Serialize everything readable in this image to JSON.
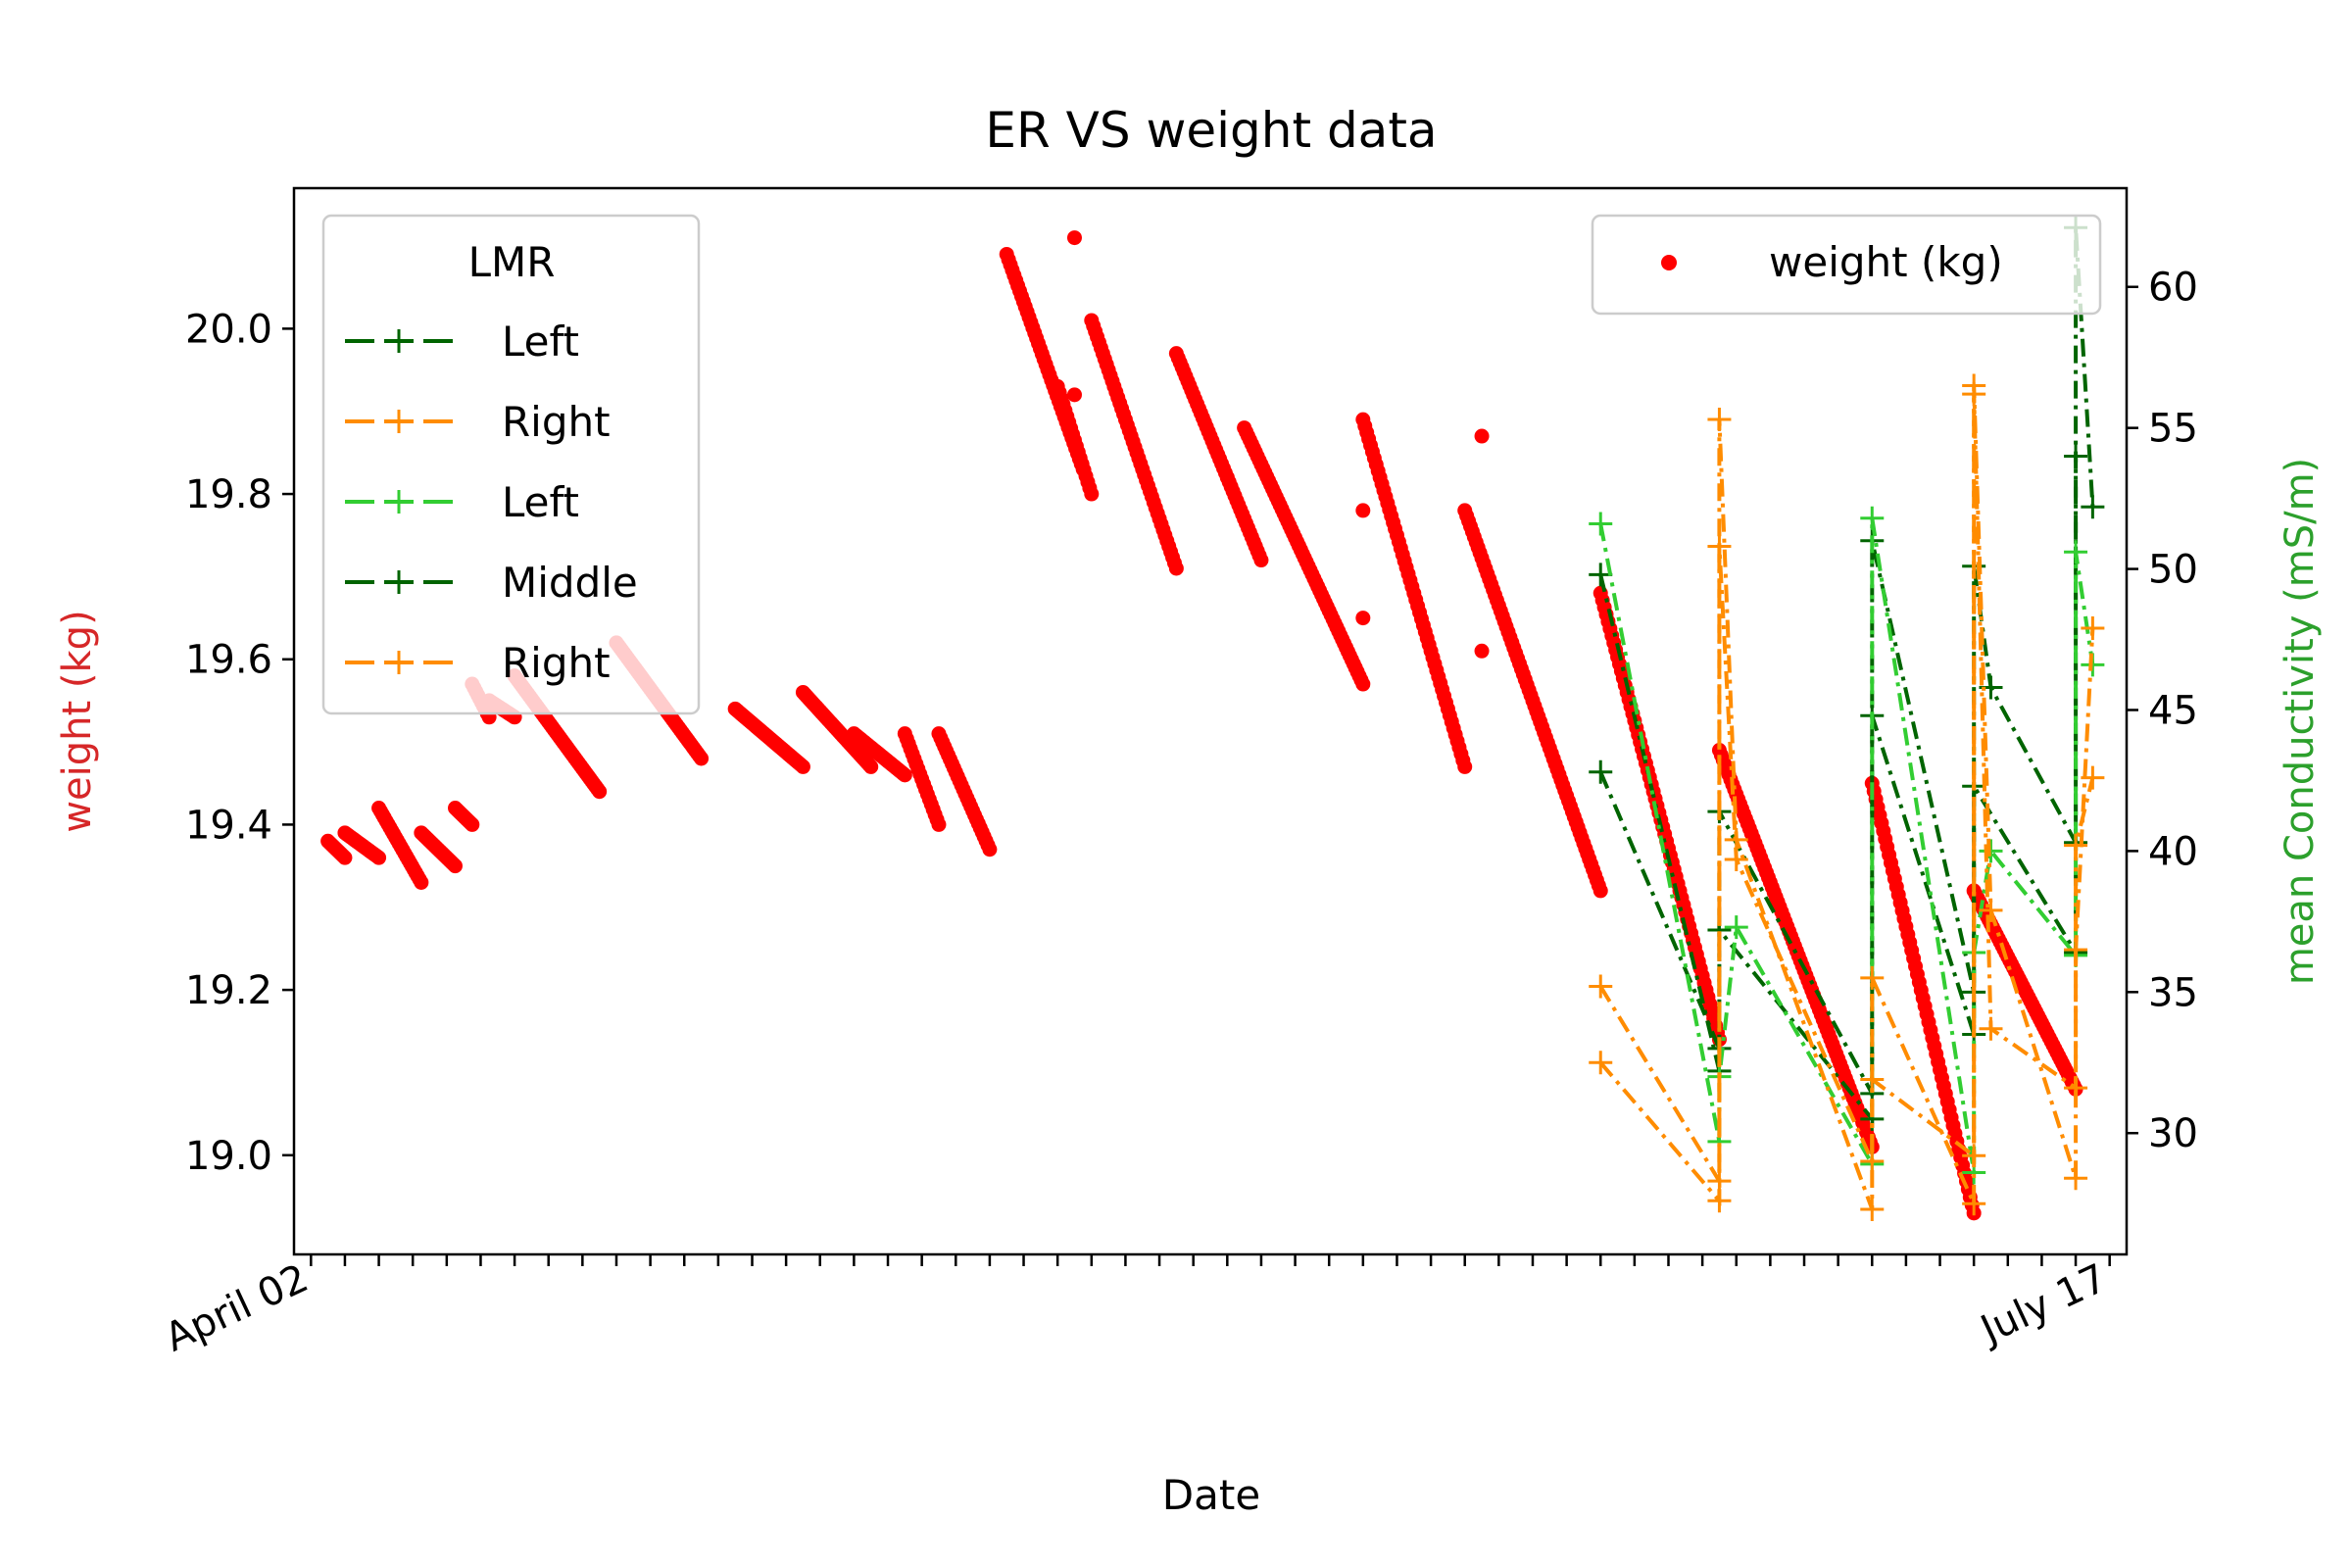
{
  "chart_data": {
    "type": "line",
    "title": "ER VS weight data",
    "xlabel": "Date",
    "ylabel_left": "weight (kg)",
    "ylabel_right": "mean Conductivity (mS/m)",
    "ylabel_left_color": "#d62728",
    "ylabel_right_color": "#2ca02c",
    "x_range": [
      "2023-04-01",
      "2023-07-18"
    ],
    "ylim_left": [
      18.88,
      20.17
    ],
    "ylim_right": [
      25.7,
      63.5
    ],
    "yticks_left": [
      19.0,
      19.2,
      19.4,
      19.6,
      19.8,
      20.0
    ],
    "yticks_right": [
      30,
      35,
      40,
      45,
      50,
      55,
      60
    ],
    "grid": false,
    "xtick_labels": [
      {
        "date": "2023-04-02",
        "label": "April 02"
      },
      {
        "date": "2023-07-17",
        "label": "July 17"
      }
    ],
    "legend_lmr": {
      "title": "LMR",
      "location": "upper left",
      "entries": [
        {
          "label": "Left",
          "color": "#006400"
        },
        {
          "label": "Right",
          "color": "#ff8c00"
        },
        {
          "label": "Left",
          "color": "#32cd32"
        },
        {
          "label": "Middle",
          "color": "#006400"
        },
        {
          "label": "Right",
          "color": "#ff8c00"
        }
      ]
    },
    "legend_weight": {
      "location": "upper right",
      "label": "weight (kg)",
      "color": "#ff0000"
    },
    "weight_segments": [
      {
        "start": "2023-04-03",
        "end": "2023-04-04",
        "from": 19.38,
        "to": 19.36
      },
      {
        "start": "2023-04-04",
        "end": "2023-04-06",
        "from": 19.39,
        "to": 19.36
      },
      {
        "start": "2023-04-06",
        "end": "2023-04-08.5",
        "from": 19.42,
        "to": 19.33
      },
      {
        "start": "2023-04-08.5",
        "end": "2023-04-10.5",
        "from": 19.39,
        "to": 19.35
      },
      {
        "start": "2023-04-10.5",
        "end": "2023-04-11.5",
        "from": 19.42,
        "to": 19.4
      },
      {
        "start": "2023-04-11.5",
        "end": "2023-04-12.5",
        "from": 19.57,
        "to": 19.53
      },
      {
        "start": "2023-04-12.5",
        "end": "2023-04-14",
        "from": 19.55,
        "to": 19.53
      },
      {
        "start": "2023-04-14",
        "end": "2023-04-19",
        "from": 19.58,
        "to": 19.44
      },
      {
        "start": "2023-04-20",
        "end": "2023-04-25",
        "from": 19.62,
        "to": 19.48
      },
      {
        "start": "2023-04-27",
        "end": "2023-05-01",
        "from": 19.54,
        "to": 19.47
      },
      {
        "start": "2023-05-01",
        "end": "2023-05-05",
        "from": 19.56,
        "to": 19.47
      },
      {
        "start": "2023-05-04",
        "end": "2023-05-07",
        "from": 19.51,
        "to": 19.46
      },
      {
        "start": "2023-05-07",
        "end": "2023-05-09",
        "from": 19.51,
        "to": 19.4
      },
      {
        "start": "2023-05-09",
        "end": "2023-05-12",
        "from": 19.51,
        "to": 19.37
      },
      {
        "start": "2023-05-13",
        "end": "2023-05-17.5",
        "from": 20.09,
        "to": 19.83
      },
      {
        "start": "2023-05-16",
        "end": "2023-05-18",
        "from": 19.93,
        "to": 19.8
      },
      {
        "start": "2023-05-18",
        "end": "2023-05-23",
        "from": 20.01,
        "to": 19.71
      },
      {
        "start": "2023-05-23",
        "end": "2023-05-28",
        "from": 19.97,
        "to": 19.72
      },
      {
        "start": "2023-05-27",
        "end": "2023-06-03",
        "from": 19.88,
        "to": 19.57
      },
      {
        "start": "2023-06-03",
        "end": "2023-06-09",
        "from": 19.89,
        "to": 19.47
      },
      {
        "start": "2023-06-09",
        "end": "2023-06-17",
        "from": 19.78,
        "to": 19.32
      },
      {
        "start": "2023-06-17",
        "end": "2023-06-24",
        "from": 19.68,
        "to": 19.14
      },
      {
        "start": "2023-06-24",
        "end": "2023-07-03",
        "from": 19.49,
        "to": 19.01
      },
      {
        "start": "2023-07-03",
        "end": "2023-07-09",
        "from": 19.45,
        "to": 18.93
      },
      {
        "start": "2023-07-09",
        "end": "2023-07-15",
        "from": 19.32,
        "to": 19.08
      }
    ],
    "weight_outliers": [
      {
        "date": "2023-05-17",
        "value": 20.11
      },
      {
        "date": "2023-05-17",
        "value": 19.92
      },
      {
        "date": "2023-05-26",
        "value": 19.82
      },
      {
        "date": "2023-06-03",
        "value": 19.78
      },
      {
        "date": "2023-06-03",
        "value": 19.65
      },
      {
        "date": "2023-06-10",
        "value": 19.87
      },
      {
        "date": "2023-06-10",
        "value": 19.61
      }
    ],
    "conductivity_series": [
      {
        "name": "Left",
        "color": "#006400",
        "points": [
          {
            "date": "2023-06-17",
            "value": 42.8
          },
          {
            "date": "2023-06-24",
            "value": 33.0
          },
          {
            "date": "2023-06-24",
            "value": 41.4
          },
          {
            "date": "2023-07-03",
            "value": 31.4
          },
          {
            "date": "2023-07-03",
            "value": 44.8
          },
          {
            "date": "2023-07-09",
            "value": 33.5
          },
          {
            "date": "2023-07-09",
            "value": 42.3
          },
          {
            "date": "2023-07-15",
            "value": 36.4
          },
          {
            "date": "2023-07-15",
            "value": 54.0
          }
        ]
      },
      {
        "name": "Middle",
        "color": "#006400",
        "points": [
          {
            "date": "2023-06-17",
            "value": 49.8
          },
          {
            "date": "2023-06-24",
            "value": 32.2
          },
          {
            "date": "2023-06-24",
            "value": 37.2
          },
          {
            "date": "2023-07-03",
            "value": 30.5
          },
          {
            "date": "2023-07-03",
            "value": 51.0
          },
          {
            "date": "2023-07-09",
            "value": 35.0
          },
          {
            "date": "2023-07-09",
            "value": 50.1
          },
          {
            "date": "2023-07-10",
            "value": 45.8
          },
          {
            "date": "2023-07-15",
            "value": 40.3
          },
          {
            "date": "2023-07-15",
            "value": 62.1
          },
          {
            "date": "2023-07-16",
            "value": 52.2
          }
        ]
      },
      {
        "name": "Left",
        "color": "#32cd32",
        "points": [
          {
            "date": "2023-06-17",
            "value": 51.6
          },
          {
            "date": "2023-06-24",
            "value": 29.7
          },
          {
            "date": "2023-06-24",
            "value": 32.0
          },
          {
            "date": "2023-06-25",
            "value": 37.3
          },
          {
            "date": "2023-07-03",
            "value": 28.9
          },
          {
            "date": "2023-07-03",
            "value": 51.8
          },
          {
            "date": "2023-07-09",
            "value": 28.6
          },
          {
            "date": "2023-07-09",
            "value": 36.4
          },
          {
            "date": "2023-07-10",
            "value": 40.0
          },
          {
            "date": "2023-07-15",
            "value": 36.3
          },
          {
            "date": "2023-07-15",
            "value": 50.6
          },
          {
            "date": "2023-07-16",
            "value": 46.6
          }
        ]
      },
      {
        "name": "Right",
        "color": "#ff8c00",
        "points": [
          {
            "date": "2023-06-17",
            "value": 32.5
          },
          {
            "date": "2023-06-24",
            "value": 27.6
          },
          {
            "date": "2023-06-24",
            "value": 55.3
          },
          {
            "date": "2023-06-25",
            "value": 40.4
          },
          {
            "date": "2023-07-03",
            "value": 27.3
          },
          {
            "date": "2023-07-03",
            "value": 35.5
          },
          {
            "date": "2023-07-09",
            "value": 27.5
          },
          {
            "date": "2023-07-09",
            "value": 56.5
          },
          {
            "date": "2023-07-10",
            "value": 37.9
          },
          {
            "date": "2023-07-15",
            "value": 28.4
          },
          {
            "date": "2023-07-15",
            "value": 40.2
          },
          {
            "date": "2023-07-16",
            "value": 42.6
          }
        ]
      },
      {
        "name": "Right",
        "color": "#ff8c00",
        "points": [
          {
            "date": "2023-06-17",
            "value": 35.2
          },
          {
            "date": "2023-06-24",
            "value": 28.3
          },
          {
            "date": "2023-06-24",
            "value": 50.8
          },
          {
            "date": "2023-06-25",
            "value": 39.7
          },
          {
            "date": "2023-07-03",
            "value": 29.0
          },
          {
            "date": "2023-07-03",
            "value": 31.9
          },
          {
            "date": "2023-07-09",
            "value": 29.2
          },
          {
            "date": "2023-07-09",
            "value": 56.2
          },
          {
            "date": "2023-07-10",
            "value": 33.7
          },
          {
            "date": "2023-07-15",
            "value": 31.6
          },
          {
            "date": "2023-07-15",
            "value": 36.5
          },
          {
            "date": "2023-07-16",
            "value": 47.9
          }
        ]
      }
    ]
  }
}
